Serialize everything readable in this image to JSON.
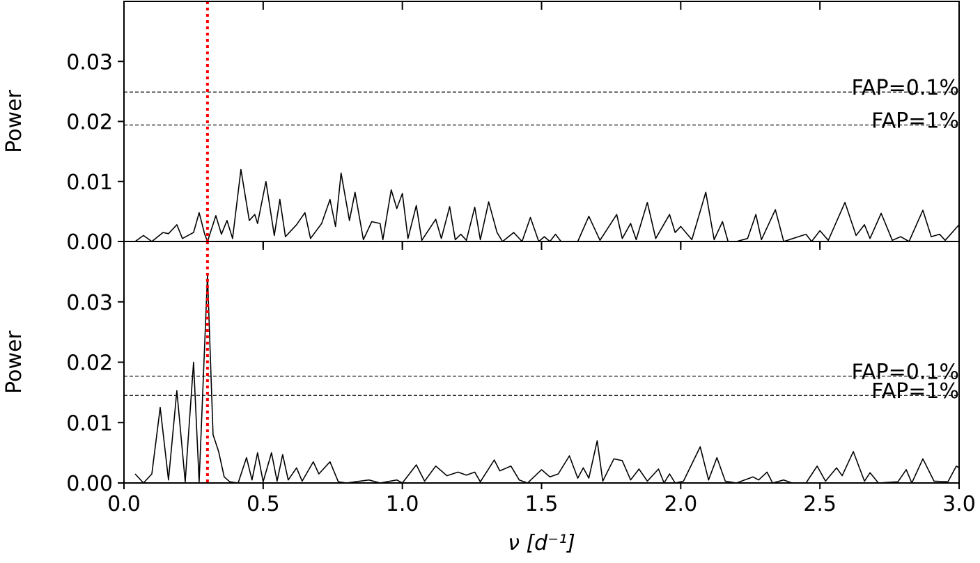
{
  "chart_data": [
    {
      "type": "line",
      "ylabel": "Power",
      "color": "#000000",
      "x": [
        0.04,
        0.07,
        0.1,
        0.14,
        0.16,
        0.19,
        0.21,
        0.25,
        0.27,
        0.29,
        0.3,
        0.33,
        0.35,
        0.37,
        0.39,
        0.42,
        0.45,
        0.47,
        0.48,
        0.51,
        0.54,
        0.56,
        0.58,
        0.62,
        0.65,
        0.67,
        0.71,
        0.74,
        0.76,
        0.78,
        0.81,
        0.83,
        0.86,
        0.89,
        0.92,
        0.93,
        0.96,
        0.98,
        1.0,
        1.02,
        1.05,
        1.07,
        1.12,
        1.14,
        1.17,
        1.19,
        1.21,
        1.23,
        1.26,
        1.28,
        1.31,
        1.34,
        1.36,
        1.4,
        1.43,
        1.46,
        1.49,
        1.51,
        1.53,
        1.55,
        1.57,
        1.63,
        1.67,
        1.71,
        1.77,
        1.79,
        1.82,
        1.84,
        1.88,
        1.91,
        1.96,
        1.98,
        2.0,
        2.04,
        2.09,
        2.12,
        2.15,
        2.17,
        2.2,
        2.24,
        2.27,
        2.29,
        2.34,
        2.37,
        2.45,
        2.47,
        2.5,
        2.53,
        2.59,
        2.63,
        2.66,
        2.68,
        2.72,
        2.76,
        2.79,
        2.82,
        2.87,
        2.9,
        2.93,
        2.95,
        3.0
      ],
      "values": [
        0,
        0.001,
        0,
        0.0015,
        0.0013,
        0.0028,
        0.0005,
        0.0015,
        0.0048,
        0.0012,
        0,
        0.0043,
        0.0012,
        0.0035,
        0.0005,
        0.012,
        0.0035,
        0.0045,
        0.003,
        0.01,
        0.001,
        0.007,
        0.0008,
        0.0028,
        0.0048,
        0.0005,
        0.003,
        0.007,
        0.0025,
        0.0114,
        0.0035,
        0.0082,
        0.0003,
        0.0033,
        0.003,
        0.0003,
        0.0086,
        0.0055,
        0.008,
        0.0005,
        0.006,
        0.0002,
        0.0037,
        0.0005,
        0.0058,
        0.0003,
        0.0012,
        0.0002,
        0.0057,
        0.0003,
        0.0066,
        0.0015,
        0,
        0.0015,
        0,
        0.004,
        0,
        0.0008,
        0,
        0.0012,
        0,
        0,
        0.0042,
        0.0002,
        0.0045,
        0.0005,
        0.003,
        0.0003,
        0.0065,
        0.0005,
        0.0045,
        0.0015,
        0.0025,
        0.0003,
        0.0082,
        0.0003,
        0.0033,
        0,
        0,
        0.0005,
        0.0045,
        0.0003,
        0.0053,
        0,
        0.0012,
        0,
        0.0018,
        0.0002,
        0.0065,
        0.001,
        0.0028,
        0.0005,
        0.0047,
        0.0002,
        0.0008,
        0,
        0.0052,
        0.0008,
        0.0012,
        0.0002,
        0.0028
      ],
      "xlim": [
        0,
        3
      ],
      "xticks": [
        0,
        0.5,
        1,
        1.5,
        2,
        2.5,
        3
      ],
      "ylim": [
        0,
        0.04
      ],
      "yticks": [
        {
          "value": 0,
          "label": "0.00"
        },
        0.01,
        0.02,
        0.03
      ],
      "hlines": [
        {
          "value": 0.0249,
          "label": "FAP=0.1%"
        },
        {
          "value": 0.0194,
          "label": "FAP=1%"
        }
      ],
      "vlines": [
        {
          "value": 0.3,
          "color": "#ff0000"
        }
      ]
    },
    {
      "type": "line",
      "ylabel": "Power",
      "xlabel": "ν [d⁻¹]",
      "color": "#000000",
      "x": [
        0.04,
        0.07,
        0.1,
        0.13,
        0.16,
        0.19,
        0.22,
        0.25,
        0.27,
        0.3,
        0.32,
        0.34,
        0.36,
        0.38,
        0.41,
        0.44,
        0.46,
        0.48,
        0.5,
        0.53,
        0.55,
        0.57,
        0.59,
        0.62,
        0.64,
        0.68,
        0.7,
        0.74,
        0.77,
        0.8,
        0.88,
        0.92,
        0.98,
        1.0,
        1.05,
        1.08,
        1.12,
        1.16,
        1.2,
        1.23,
        1.26,
        1.28,
        1.33,
        1.35,
        1.39,
        1.42,
        1.45,
        1.5,
        1.53,
        1.56,
        1.6,
        1.63,
        1.65,
        1.67,
        1.7,
        1.72,
        1.76,
        1.79,
        1.82,
        1.85,
        1.88,
        1.92,
        1.94,
        1.96,
        1.98,
        2.01,
        2.07,
        2.1,
        2.13,
        2.16,
        2.2,
        2.26,
        2.28,
        2.31,
        2.33,
        2.37,
        2.4,
        2.45,
        2.49,
        2.52,
        2.56,
        2.58,
        2.62,
        2.66,
        2.68,
        2.71,
        2.78,
        2.81,
        2.83,
        2.87,
        2.91,
        2.96,
        2.99,
        3.0
      ],
      "values": [
        0.0015,
        0,
        0.0015,
        0.0125,
        0.0005,
        0.0153,
        0.0002,
        0.02,
        0.0002,
        0.0345,
        0.008,
        0.0052,
        0.001,
        0.0002,
        0,
        0.0042,
        0.0005,
        0.005,
        0.0002,
        0.005,
        0.0003,
        0.0047,
        0.0005,
        0.0025,
        0.0003,
        0.0035,
        0.0015,
        0.0035,
        0.0002,
        0,
        0.0005,
        0,
        0.0005,
        0,
        0.003,
        0.0003,
        0.0028,
        0.0012,
        0.0018,
        0.0013,
        0.0018,
        0.0002,
        0.0038,
        0.002,
        0.0028,
        0.0005,
        0,
        0.0022,
        0.001,
        0.0015,
        0.0045,
        0.0008,
        0.0025,
        0.0008,
        0.007,
        0.0003,
        0.004,
        0.0037,
        0.0005,
        0.0023,
        0.0003,
        0.0023,
        0,
        0.0015,
        0,
        0.0003,
        0.006,
        0.0005,
        0.0042,
        0.0003,
        0,
        0.001,
        0.0005,
        0.0018,
        0,
        0.0005,
        0,
        0,
        0.0028,
        0.0003,
        0.0025,
        0.0012,
        0.0052,
        0.0003,
        0.0017,
        0,
        0.0002,
        0.0022,
        0,
        0.004,
        0.0003,
        0.0002,
        0.0028,
        0.0025
      ],
      "xlim": [
        0,
        3
      ],
      "xticks": [
        {
          "value": 0,
          "label": "0.0"
        },
        0.5,
        {
          "value": 1,
          "label": "1.0"
        },
        1.5,
        {
          "value": 2,
          "label": "2.0"
        },
        2.5,
        {
          "value": 3,
          "label": "3.0"
        }
      ],
      "ylim": [
        0,
        0.04
      ],
      "yticks": [
        {
          "value": 0,
          "label": "0.00"
        },
        0.01,
        0.02,
        0.03
      ],
      "hlines": [
        {
          "value": 0.0177,
          "label": "FAP=0.1%"
        },
        {
          "value": 0.0145,
          "label": "FAP=1%"
        }
      ],
      "vlines": [
        {
          "value": 0.3,
          "color": "#ff0000"
        }
      ]
    }
  ]
}
